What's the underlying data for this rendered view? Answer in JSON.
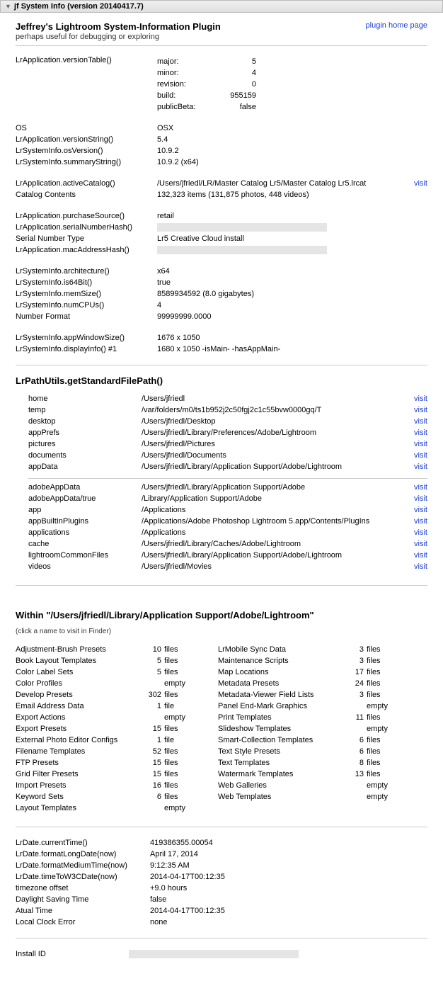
{
  "titlebar": {
    "title": "jf System Info (version 20140417.7)"
  },
  "header": {
    "title": "Jeffrey's Lightroom System-Information Plugin",
    "subtitle": "perhaps useful for debugging or exploring",
    "homepage": "plugin home page"
  },
  "visit_label": "visit",
  "versionTable": {
    "label": "LrApplication.versionTable()",
    "rows": [
      {
        "k": "major:",
        "v": "5"
      },
      {
        "k": "minor:",
        "v": "4"
      },
      {
        "k": "revision:",
        "v": "0"
      },
      {
        "k": "build:",
        "v": "955159"
      },
      {
        "k": "publicBeta:",
        "v": "false"
      }
    ]
  },
  "block1": [
    {
      "k": "OS",
      "v": "OSX"
    },
    {
      "k": "LrApplication.versionString()",
      "v": "5.4"
    },
    {
      "k": "LrSystemInfo.osVersion()",
      "v": "10.9.2"
    },
    {
      "k": "LrSystemInfo.summaryString()",
      "v": "10.9.2 (x64)"
    }
  ],
  "block2": [
    {
      "k": "LrApplication.activeCatalog()",
      "v": "/Users/jfriedl/LR/Master Catalog Lr5/Master Catalog Lr5.lrcat",
      "visit": true
    },
    {
      "k": "Catalog Contents",
      "v": "132,323 items (131,875 photos, 448 videos)"
    }
  ],
  "block3": [
    {
      "k": "LrApplication.purchaseSource()",
      "v": "retail"
    },
    {
      "k": "LrApplication.serialNumberHash()",
      "redacted": true
    },
    {
      "k": "Serial Number Type",
      "v": "Lr5 Creative Cloud install"
    },
    {
      "k": "LrApplication.macAddressHash()",
      "redacted": true
    }
  ],
  "block4": [
    {
      "k": "LrSystemInfo.architecture()",
      "v": "x64"
    },
    {
      "k": "LrSystemInfo.is64Bit()",
      "v": "true"
    },
    {
      "k": "LrSystemInfo.memSize()",
      "v": "8589934592  (8.0 gigabytes)"
    },
    {
      "k": "LrSystemInfo.numCPUs()",
      "v": "4"
    },
    {
      "k": "Number Format",
      "v": "99999999.0000"
    }
  ],
  "block5": [
    {
      "k": "LrSystemInfo.appWindowSize()",
      "v": "1676 x 1050"
    },
    {
      "k": "LrSystemInfo.displayInfo() #1",
      "v": "1680 x 1050 -isMain- -hasAppMain-"
    }
  ],
  "paths_title": "LrPathUtils.getStandardFilePath()",
  "paths1": [
    {
      "k": "home",
      "v": "/Users/jfriedl"
    },
    {
      "k": "temp",
      "v": "/var/folders/m0/ts1b952j2c50fgj2c1c55bvw0000gq/T"
    },
    {
      "k": "desktop",
      "v": "/Users/jfriedl/Desktop"
    },
    {
      "k": "appPrefs",
      "v": "/Users/jfriedl/Library/Preferences/Adobe/Lightroom"
    },
    {
      "k": "pictures",
      "v": "/Users/jfriedl/Pictures"
    },
    {
      "k": "documents",
      "v": "/Users/jfriedl/Documents"
    },
    {
      "k": "appData",
      "v": "/Users/jfriedl/Library/Application Support/Adobe/Lightroom"
    }
  ],
  "paths2": [
    {
      "k": "adobeAppData",
      "v": "/Users/jfriedl/Library/Application Support/Adobe"
    },
    {
      "k": "adobeAppData/true",
      "v": "/Library/Application Support/Adobe"
    },
    {
      "k": "app",
      "v": "/Applications"
    },
    {
      "k": "appBuiltInPlugins",
      "v": "/Applications/Adobe Photoshop Lightroom 5.app/Contents/PlugIns"
    },
    {
      "k": "applications",
      "v": "/Applications"
    },
    {
      "k": "cache",
      "v": "/Users/jfriedl/Library/Caches/Adobe/Lightroom"
    },
    {
      "k": "lightroomCommonFiles",
      "v": "/Users/jfriedl/Library/Application Support/Adobe/Lightroom"
    },
    {
      "k": "videos",
      "v": "/Users/jfriedl/Movies"
    }
  ],
  "within": {
    "title": "Within \"/Users/jfriedl/Library/Application Support/Adobe/Lightroom\"",
    "sub": "(click a name to visit in Finder)"
  },
  "filesA": [
    {
      "n": "Adjustment-Brush Presets",
      "c": "10",
      "u": "files"
    },
    {
      "n": "Book Layout Templates",
      "c": "5",
      "u": "files"
    },
    {
      "n": "Color Label Sets",
      "c": "5",
      "u": "files"
    },
    {
      "n": "Color Profiles",
      "c": "",
      "u": "empty"
    },
    {
      "n": "Develop Presets",
      "c": "302",
      "u": "files"
    },
    {
      "n": "Email Address Data",
      "c": "1",
      "u": "file"
    },
    {
      "n": "Export Actions",
      "c": "",
      "u": "empty"
    },
    {
      "n": "Export Presets",
      "c": "15",
      "u": "files"
    },
    {
      "n": "External Photo Editor Configs",
      "c": "1",
      "u": "file"
    },
    {
      "n": "Filename Templates",
      "c": "52",
      "u": "files"
    },
    {
      "n": "FTP Presets",
      "c": "15",
      "u": "files"
    },
    {
      "n": "Grid Filter Presets",
      "c": "15",
      "u": "files"
    },
    {
      "n": "Import Presets",
      "c": "16",
      "u": "files"
    },
    {
      "n": "Keyword Sets",
      "c": "6",
      "u": "files"
    },
    {
      "n": "Layout Templates",
      "c": "",
      "u": "empty"
    }
  ],
  "filesB": [
    {
      "n": "LrMobile Sync Data",
      "c": "3",
      "u": "files"
    },
    {
      "n": "Maintenance Scripts",
      "c": "3",
      "u": "files"
    },
    {
      "n": "Map Locations",
      "c": "17",
      "u": "files"
    },
    {
      "n": "Metadata Presets",
      "c": "24",
      "u": "files"
    },
    {
      "n": "Metadata-Viewer Field Lists",
      "c": "3",
      "u": "files"
    },
    {
      "n": "Panel End-Mark Graphics",
      "c": "",
      "u": "empty"
    },
    {
      "n": "Print Templates",
      "c": "11",
      "u": "files"
    },
    {
      "n": "Slideshow Templates",
      "c": "",
      "u": "empty"
    },
    {
      "n": "Smart-Collection Templates",
      "c": "6",
      "u": "files"
    },
    {
      "n": "Text Style Presets",
      "c": "6",
      "u": "files"
    },
    {
      "n": "Text Templates",
      "c": "8",
      "u": "files"
    },
    {
      "n": "Watermark Templates",
      "c": "13",
      "u": "files"
    },
    {
      "n": "Web Galleries",
      "c": "",
      "u": "empty"
    },
    {
      "n": "Web Templates",
      "c": "",
      "u": "empty"
    }
  ],
  "dates": [
    {
      "k": "LrDate.currentTime()",
      "v": "419386355.00054"
    },
    {
      "k": "LrDate.formatLongDate(now)",
      "v": "April 17, 2014"
    },
    {
      "k": "LrDate.formatMediumTime(now)",
      "v": "9:12:35 AM"
    },
    {
      "k": "LrDate.timeToW3CDate(now)",
      "v": "2014-04-17T00:12:35"
    },
    {
      "k": "timezone offset",
      "v": "+9.0 hours"
    },
    {
      "k": "Daylight Saving Time",
      "v": "false"
    },
    {
      "k": "Atual Time",
      "v": "2014-04-17T00:12:35"
    },
    {
      "k": "Local Clock Error",
      "v": "none"
    }
  ],
  "install": {
    "k": "Install ID"
  }
}
